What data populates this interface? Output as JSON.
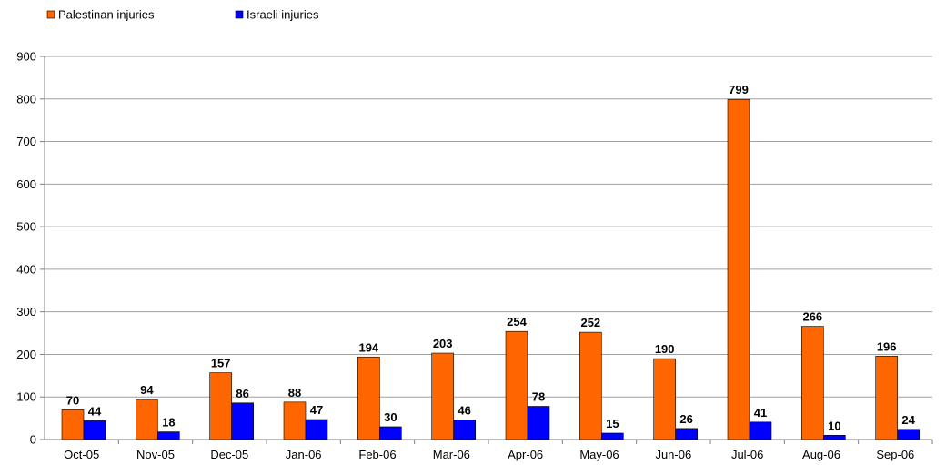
{
  "chart_data": {
    "type": "bar",
    "title": "",
    "xlabel": "",
    "ylabel": "",
    "ylim": [
      0,
      900
    ],
    "yticks": [
      0,
      100,
      200,
      300,
      400,
      500,
      600,
      700,
      800,
      900
    ],
    "grid": true,
    "legend_position": "top-left",
    "categories": [
      "Oct-05",
      "Nov-05",
      "Dec-05",
      "Jan-06",
      "Feb-06",
      "Mar-06",
      "Apr-06",
      "May-06",
      "Jun-06",
      "Jul-06",
      "Aug-06",
      "Sep-06"
    ],
    "series": [
      {
        "name": "Palestinan injuries",
        "color": "#ff6600",
        "values": [
          70,
          94,
          157,
          88,
          194,
          203,
          254,
          252,
          190,
          799,
          266,
          196
        ]
      },
      {
        "name": "Israeli injuries",
        "color": "#0000ff",
        "values": [
          44,
          18,
          86,
          47,
          30,
          46,
          78,
          15,
          26,
          41,
          10,
          24
        ]
      }
    ]
  }
}
